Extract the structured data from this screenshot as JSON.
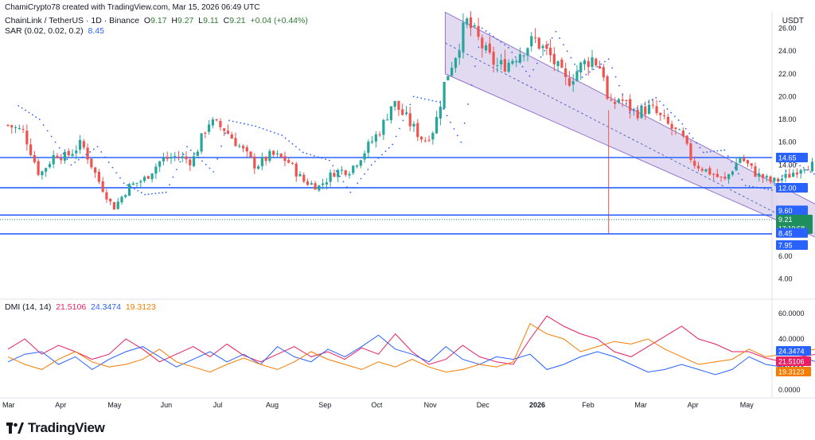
{
  "credit": "ChamiCrypto78 created with TradingView.com, Mar 15, 2026 06:49 UTC",
  "symbol": {
    "name": "ChainLink / TetherUS · 1D · Binance",
    "o_label": "O",
    "o": "9.17",
    "h_label": "H",
    "h": "9.27",
    "l_label": "L",
    "l": "9.11",
    "c_label": "C",
    "c": "9.21",
    "change": "+0.04 (+0.44%)"
  },
  "sar": {
    "label": "SAR (0.02, 0.02, 0.2)",
    "value": "8.45"
  },
  "dmi": {
    "label": "DMI (14, 14)",
    "plus": "21.5106",
    "minus": "24.3474",
    "adx": "19.3123"
  },
  "currency": "USDT",
  "brand": "TradingView",
  "colors": {
    "up": "#26a69a",
    "down": "#ef5350",
    "level": "#2962ff",
    "channel": "#b39ddb",
    "di_plus": "#e91e63",
    "di_minus": "#2962ff",
    "adx": "#f57c00",
    "current": "#1e8e5e"
  },
  "chart_data": [
    {
      "type": "candlestick",
      "x_ticks": [
        "Mar",
        "Apr",
        "May",
        "Jun",
        "Jul",
        "Aug",
        "Sep",
        "Oct",
        "Nov",
        "Dec",
        "2026",
        "Feb",
        "Mar",
        "Apr",
        "May"
      ],
      "y_ticks": [
        4.0,
        6.0,
        8.0,
        10.0,
        12.0,
        14.0,
        16.0,
        18.0,
        20.0,
        22.0,
        24.0,
        26.0
      ],
      "ylim": [
        2.5,
        27.5
      ],
      "horizontal_levels": [
        14.65,
        12.0,
        9.6,
        7.95
      ],
      "level_labels": [
        "14.65",
        "12.00",
        "9.60",
        "7.95"
      ],
      "current_price": {
        "value": 9.21,
        "label": "9.21",
        "countdown": "17:10:58"
      },
      "sar_label": {
        "value": 8.45,
        "label": "8.45"
      },
      "channel": {
        "upper_start": [
          8.3,
          27.4
        ],
        "upper_end": [
          15.6,
          9.9
        ],
        "lower_start": [
          8.3,
          22.0
        ],
        "lower_end": [
          15.6,
          7.1
        ]
      },
      "price_path": [
        [
          0.0,
          17.5
        ],
        [
          0.3,
          16.9
        ],
        [
          0.6,
          13.1
        ],
        [
          0.9,
          15.0
        ],
        [
          1.1,
          14.7
        ],
        [
          1.4,
          15.9
        ],
        [
          1.7,
          12.8
        ],
        [
          2.0,
          10.2
        ],
        [
          2.3,
          12.1
        ],
        [
          2.6,
          12.8
        ],
        [
          2.9,
          14.4
        ],
        [
          3.2,
          14.8
        ],
        [
          3.5,
          14.3
        ],
        [
          3.8,
          17.8
        ],
        [
          4.1,
          17.2
        ],
        [
          4.4,
          15.6
        ],
        [
          4.7,
          13.9
        ],
        [
          5.0,
          14.9
        ],
        [
          5.3,
          14.4
        ],
        [
          5.6,
          12.6
        ],
        [
          5.9,
          12.1
        ],
        [
          6.2,
          13.4
        ],
        [
          6.5,
          13.6
        ],
        [
          6.8,
          15.4
        ],
        [
          7.1,
          17.3
        ],
        [
          7.3,
          19.6
        ],
        [
          7.6,
          17.8
        ],
        [
          7.9,
          16.1
        ],
        [
          8.1,
          17.3
        ],
        [
          8.3,
          21.5
        ],
        [
          8.5,
          23.8
        ],
        [
          8.7,
          26.6
        ],
        [
          8.9,
          25.2
        ],
        [
          9.1,
          23.6
        ],
        [
          9.3,
          22.6
        ],
        [
          9.5,
          23.0
        ],
        [
          9.8,
          24.3
        ],
        [
          10.0,
          25.0
        ],
        [
          10.3,
          23.5
        ],
        [
          10.6,
          21.2
        ],
        [
          10.9,
          22.8
        ],
        [
          11.1,
          23.4
        ],
        [
          11.3,
          22.2
        ],
        [
          11.4,
          18.8
        ],
        [
          11.6,
          19.9
        ],
        [
          11.9,
          18.6
        ],
        [
          12.2,
          19.0
        ],
        [
          12.5,
          17.6
        ],
        [
          12.8,
          16.4
        ],
        [
          13.0,
          14.2
        ],
        [
          13.3,
          13.4
        ],
        [
          13.6,
          12.6
        ],
        [
          13.9,
          14.7
        ],
        [
          14.2,
          13.2
        ],
        [
          14.5,
          12.5
        ],
        [
          14.8,
          13.0
        ],
        [
          15.1,
          14.0
        ],
        [
          15.4,
          13.9
        ],
        [
          15.7,
          12.5
        ],
        [
          16.0,
          11.8
        ],
        [
          16.2,
          9.7
        ],
        [
          16.4,
          8.2
        ],
        [
          16.7,
          8.9
        ],
        [
          17.0,
          9.1
        ],
        [
          17.3,
          9.0
        ],
        [
          17.6,
          9.0
        ],
        [
          17.9,
          9.21
        ]
      ],
      "sar_dots": [
        [
          0.2,
          19.2
        ],
        [
          0.6,
          18.0
        ],
        [
          1.2,
          14.0
        ],
        [
          1.7,
          15.6
        ],
        [
          2.2,
          12.4
        ],
        [
          2.6,
          11.4
        ],
        [
          3.0,
          11.6
        ],
        [
          3.4,
          15.6
        ],
        [
          3.9,
          13.4
        ],
        [
          4.2,
          17.9
        ],
        [
          4.7,
          17.4
        ],
        [
          5.2,
          16.6
        ],
        [
          5.6,
          15.1
        ],
        [
          6.1,
          14.4
        ],
        [
          6.5,
          11.6
        ],
        [
          6.9,
          14.0
        ],
        [
          7.3,
          15.8
        ],
        [
          7.7,
          20.0
        ],
        [
          8.2,
          19.5
        ],
        [
          8.6,
          16.0
        ],
        [
          9.0,
          26.0
        ],
        [
          9.5,
          24.3
        ],
        [
          9.9,
          21.8
        ],
        [
          10.4,
          25.7
        ],
        [
          10.9,
          21.7
        ],
        [
          11.4,
          23.3
        ],
        [
          11.8,
          18.6
        ],
        [
          12.3,
          19.9
        ],
        [
          12.8,
          17.6
        ],
        [
          13.2,
          15.1
        ],
        [
          13.6,
          15.3
        ],
        [
          14.0,
          12.2
        ],
        [
          14.5,
          11.8
        ],
        [
          14.9,
          14.3
        ],
        [
          15.3,
          13.2
        ],
        [
          15.7,
          14.5
        ],
        [
          16.1,
          12.3
        ],
        [
          16.5,
          7.8
        ],
        [
          16.9,
          8.3
        ],
        [
          17.3,
          8.5
        ],
        [
          17.7,
          8.4
        ],
        [
          18.0,
          8.45
        ]
      ]
    },
    {
      "type": "line",
      "title": "DMI (14, 14)",
      "y_ticks": [
        0.0,
        20.0,
        40.0,
        60.0
      ],
      "ylim": [
        0,
        65
      ],
      "series": [
        {
          "name": "+DI",
          "values": [
            32,
            40,
            28,
            35,
            30,
            24,
            28,
            40,
            32,
            22,
            28,
            34,
            26,
            36,
            27,
            22,
            28,
            34,
            26,
            30,
            24,
            33,
            28,
            44,
            30,
            20,
            24,
            35,
            26,
            22,
            20,
            40,
            58,
            50,
            44,
            40,
            30,
            26,
            34,
            42,
            50,
            40,
            36,
            30,
            30,
            25,
            22,
            26,
            28,
            32,
            35,
            42,
            62,
            60,
            50,
            33,
            21.51
          ]
        },
        {
          "name": "-DI",
          "values": [
            22,
            28,
            30,
            20,
            26,
            16,
            24,
            30,
            34,
            26,
            18,
            24,
            30,
            22,
            28,
            20,
            34,
            26,
            22,
            32,
            26,
            34,
            43,
            32,
            28,
            22,
            34,
            24,
            20,
            26,
            24,
            28,
            16,
            20,
            26,
            30,
            26,
            20,
            14,
            16,
            20,
            16,
            12,
            16,
            26,
            20,
            18,
            26,
            22,
            30,
            20,
            10,
            6,
            14,
            20,
            26,
            24.35
          ]
        },
        {
          "name": "ADX",
          "values": [
            26,
            20,
            16,
            24,
            30,
            22,
            18,
            20,
            24,
            32,
            22,
            18,
            14,
            20,
            25,
            20,
            16,
            22,
            30,
            24,
            20,
            16,
            22,
            18,
            24,
            18,
            14,
            16,
            20,
            18,
            22,
            52,
            44,
            40,
            30,
            34,
            38,
            36,
            40,
            32,
            26,
            20,
            22,
            24,
            32,
            26,
            28,
            30,
            32,
            28,
            22,
            28,
            40,
            34,
            30,
            24,
            19.31
          ]
        }
      ],
      "tags": [
        {
          "value": 24.3474,
          "label": "24.3474"
        },
        {
          "value": 21.5106,
          "label": "21.5106"
        },
        {
          "value": 19.3123,
          "label": "19.3123"
        }
      ]
    }
  ]
}
